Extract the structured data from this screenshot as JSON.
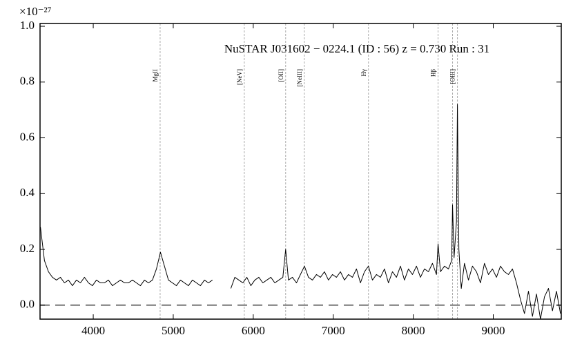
{
  "chart_data": {
    "type": "line",
    "title": "NuSTAR J031602 − 0224.1 (ID : 56)   z = 0.730   Run : 31",
    "y_multiplier": "×10⁻²⁷",
    "x": [
      3340,
      3390,
      3440,
      3490,
      3540,
      3590,
      3640,
      3690,
      3740,
      3790,
      3840,
      3890,
      3940,
      3990,
      4040,
      4090,
      4140,
      4190,
      4240,
      4290,
      4340,
      4390,
      4440,
      4490,
      4540,
      4590,
      4640,
      4690,
      4740,
      4790,
      4840,
      4890,
      4940,
      4990,
      5040,
      5090,
      5140,
      5190,
      5240,
      5290,
      5340,
      5390,
      5440,
      5490,
      5600,
      5720,
      5770,
      5820,
      5870,
      5920,
      5970,
      6020,
      6070,
      6120,
      6170,
      6220,
      6270,
      6320,
      6370,
      6405,
      6440,
      6490,
      6540,
      6590,
      6640,
      6690,
      6740,
      6790,
      6840,
      6890,
      6940,
      6990,
      7040,
      7090,
      7140,
      7190,
      7240,
      7290,
      7340,
      7390,
      7440,
      7490,
      7540,
      7590,
      7640,
      7690,
      7740,
      7790,
      7840,
      7890,
      7940,
      7990,
      8040,
      8090,
      8140,
      8190,
      8240,
      8290,
      8310,
      8340,
      8390,
      8440,
      8480,
      8491,
      8510,
      8540,
      8552,
      8570,
      8600,
      8640,
      8690,
      8740,
      8790,
      8840,
      8890,
      8940,
      8990,
      9040,
      9090,
      9140,
      9190,
      9240,
      9290,
      9340,
      9390,
      9440,
      9490,
      9540,
      9590,
      9640,
      9690,
      9740,
      9790,
      9840
    ],
    "series": [
      {
        "color": "#000000",
        "values": [
          0.28,
          0.16,
          0.12,
          0.1,
          0.09,
          0.1,
          0.08,
          0.09,
          0.07,
          0.09,
          0.08,
          0.1,
          0.08,
          0.07,
          0.09,
          0.08,
          0.08,
          0.09,
          0.07,
          0.08,
          0.09,
          0.08,
          0.08,
          0.09,
          0.08,
          0.07,
          0.09,
          0.08,
          0.09,
          0.13,
          0.19,
          0.14,
          0.09,
          0.08,
          0.07,
          0.09,
          0.08,
          0.07,
          0.09,
          0.08,
          0.07,
          0.09,
          0.08,
          0.09,
          null,
          0.06,
          0.1,
          0.09,
          0.08,
          0.1,
          0.07,
          0.09,
          0.1,
          0.08,
          0.09,
          0.1,
          0.08,
          0.09,
          0.1,
          0.2,
          0.09,
          0.1,
          0.08,
          0.11,
          0.14,
          0.1,
          0.09,
          0.11,
          0.1,
          0.12,
          0.09,
          0.11,
          0.1,
          0.12,
          0.09,
          0.11,
          0.1,
          0.13,
          0.08,
          0.12,
          0.14,
          0.09,
          0.11,
          0.1,
          0.13,
          0.08,
          0.12,
          0.1,
          0.14,
          0.09,
          0.13,
          0.11,
          0.14,
          0.1,
          0.13,
          0.12,
          0.15,
          0.11,
          0.22,
          0.12,
          0.14,
          0.13,
          0.16,
          0.36,
          0.17,
          0.3,
          0.72,
          0.2,
          0.06,
          0.15,
          0.09,
          0.14,
          0.12,
          0.08,
          0.15,
          0.11,
          0.13,
          0.1,
          0.14,
          0.12,
          0.11,
          0.13,
          0.08,
          0.02,
          -0.03,
          0.05,
          -0.04,
          0.04,
          -0.05,
          0.03,
          0.06,
          -0.02,
          0.05,
          -0.03
        ]
      }
    ],
    "emission_lines": {
      "x": [
        4836,
        5888,
        6405,
        6638,
        7440,
        8310,
        8491,
        8552
      ],
      "labels": [
        "MgII",
        "[NeV]",
        "[OII]",
        "[NeIII]",
        "Hγ",
        "Hβ",
        null,
        "[OIII]"
      ]
    },
    "zero_line": true,
    "xlim": [
      3335,
      9850
    ],
    "ylim": [
      -0.05,
      1.01
    ],
    "xticks": [
      4000,
      5000,
      6000,
      7000,
      8000,
      9000
    ],
    "yticks": [
      {
        "value": 0,
        "label": "0.0"
      },
      {
        "value": 0.2,
        "label": "0.2"
      },
      {
        "value": 0.4,
        "label": "0.4"
      },
      {
        "value": 0.6,
        "label": "0.6"
      },
      {
        "value": 0.8,
        "label": "0.8"
      },
      {
        "value": 1,
        "label": "1.0"
      }
    ]
  }
}
